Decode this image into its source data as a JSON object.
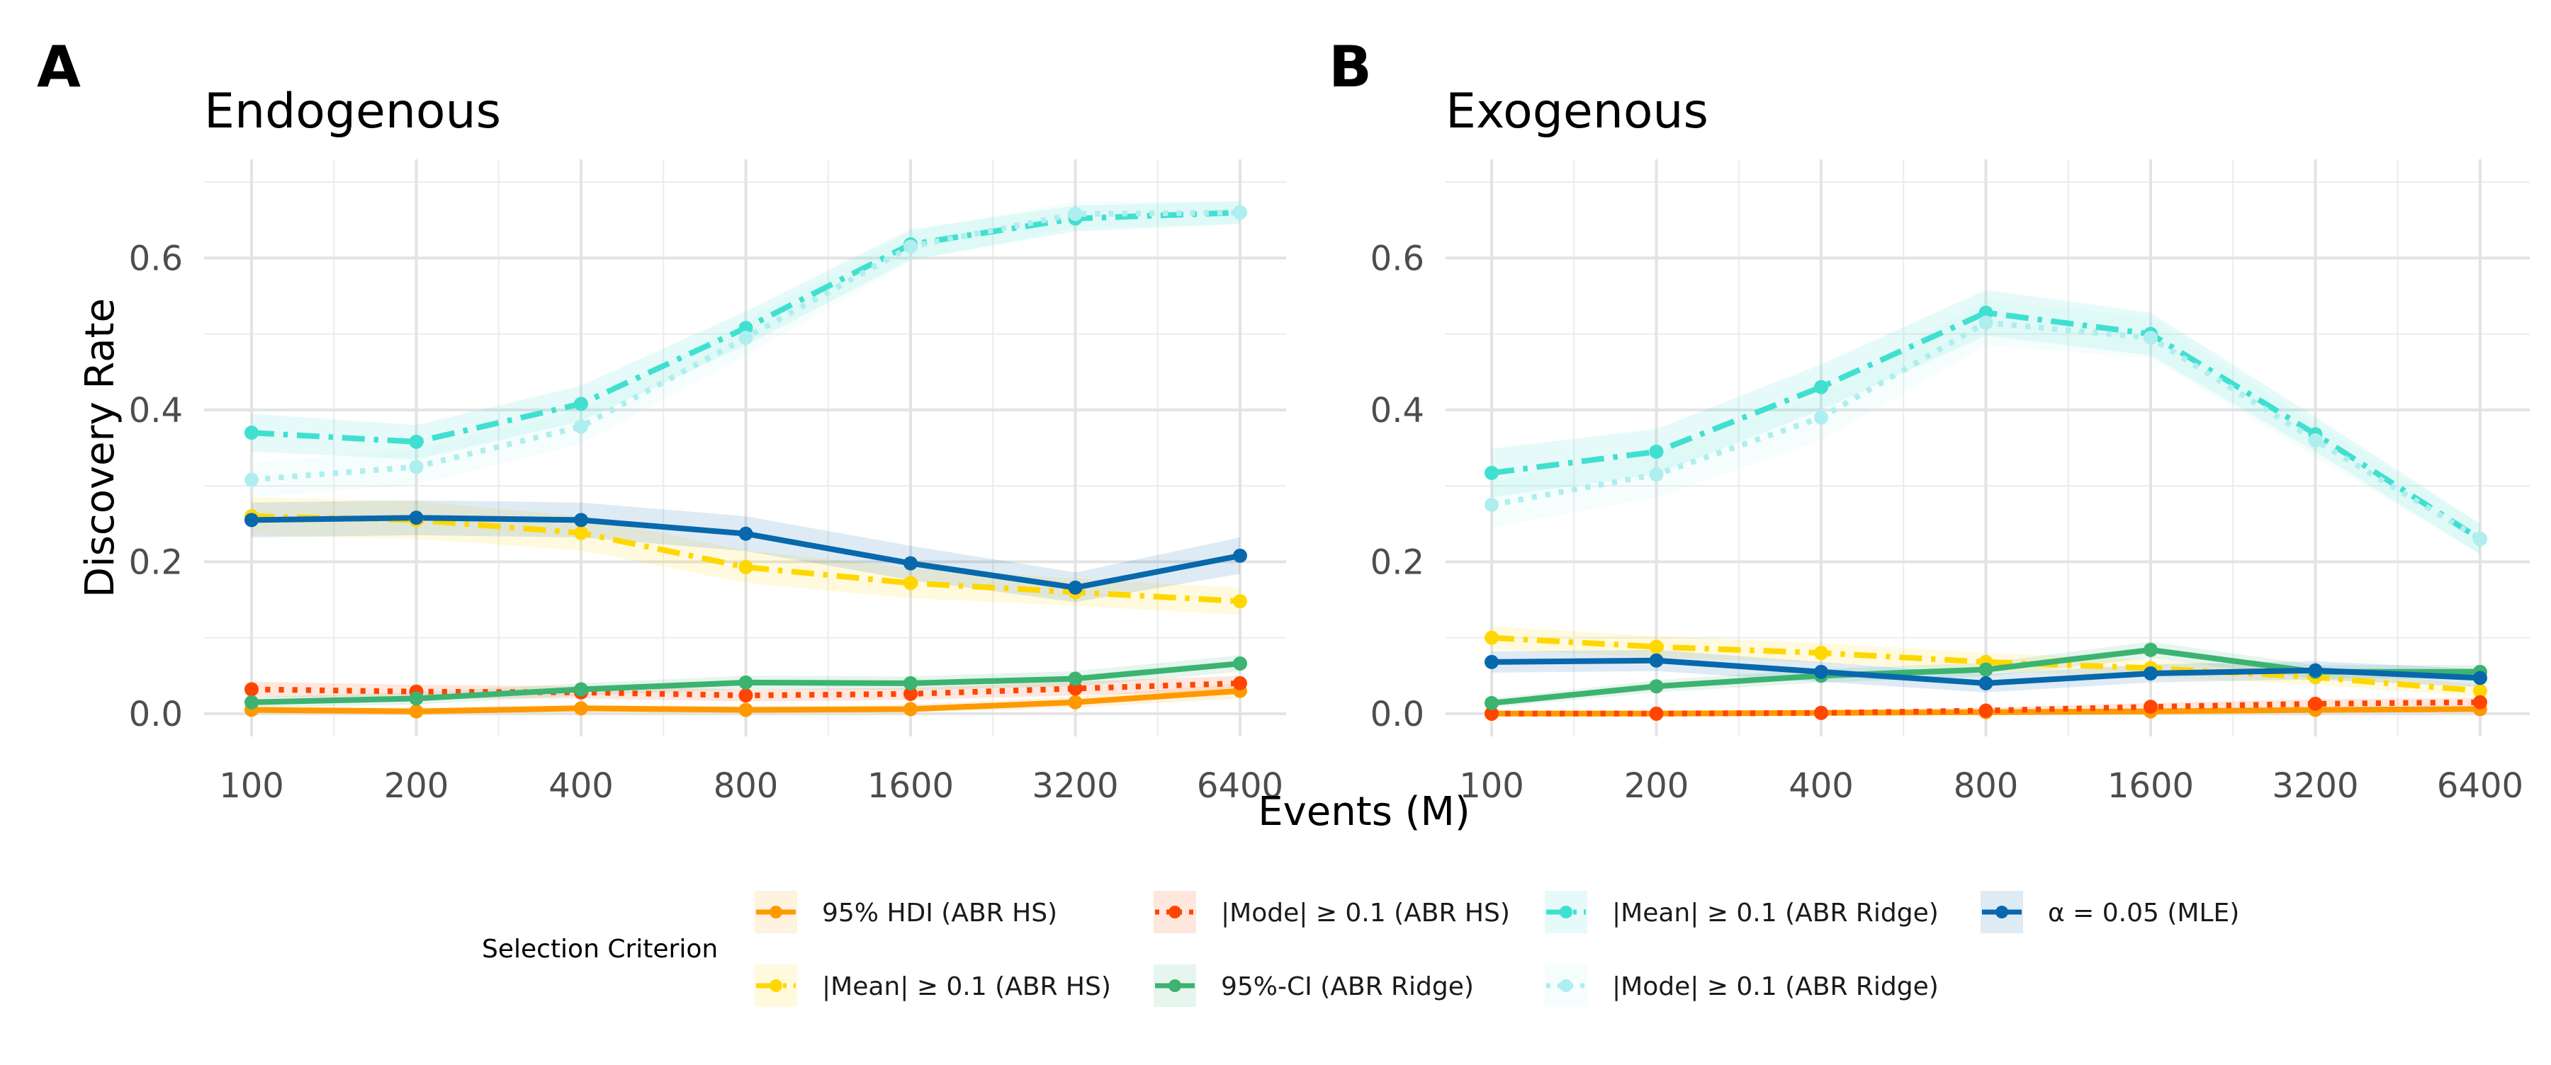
{
  "chart_data": [
    {
      "panel": "A",
      "type": "line",
      "title": "Endogenous",
      "xlabel": "Events (M)",
      "ylabel": "Discovery Rate",
      "x_scale": "log2",
      "categories": [
        "100",
        "200",
        "400",
        "800",
        "1600",
        "3200",
        "6400"
      ],
      "yticks": [
        "0.0",
        "0.2",
        "0.4",
        "0.6"
      ],
      "ylim": [
        -0.03,
        0.73
      ],
      "grid": true,
      "series": [
        {
          "name": "95% HDI (ABR HS)",
          "color": "#ff9900",
          "values": [
            0.005,
            0.003,
            0.007,
            0.005,
            0.006,
            0.015,
            0.03
          ],
          "lower": [
            0.0,
            0.0,
            0.002,
            0.001,
            0.002,
            0.008,
            0.02
          ],
          "upper": [
            0.01,
            0.008,
            0.012,
            0.01,
            0.012,
            0.022,
            0.04
          ]
        },
        {
          "name": "|Mean| ≥ 0.1 (ABR HS)",
          "color": "#ffd700",
          "values": [
            0.26,
            0.255,
            0.238,
            0.193,
            0.172,
            0.16,
            0.148
          ],
          "lower": [
            0.235,
            0.23,
            0.215,
            0.172,
            0.152,
            0.142,
            0.13
          ],
          "upper": [
            0.285,
            0.28,
            0.26,
            0.215,
            0.192,
            0.178,
            0.166
          ]
        },
        {
          "name": "|Mode| ≥ 0.1 (ABR HS)",
          "color": "#ff4500",
          "values": [
            0.032,
            0.029,
            0.028,
            0.024,
            0.026,
            0.033,
            0.04
          ],
          "lower": [
            0.022,
            0.02,
            0.02,
            0.016,
            0.018,
            0.024,
            0.03
          ],
          "upper": [
            0.042,
            0.038,
            0.036,
            0.032,
            0.034,
            0.042,
            0.05
          ]
        },
        {
          "name": "95%-CI (ABR Ridge)",
          "color": "#3cb371",
          "values": [
            0.015,
            0.02,
            0.032,
            0.041,
            0.04,
            0.046,
            0.066
          ],
          "lower": [
            0.008,
            0.012,
            0.024,
            0.032,
            0.031,
            0.036,
            0.055
          ],
          "upper": [
            0.022,
            0.028,
            0.04,
            0.05,
            0.049,
            0.056,
            0.077
          ]
        },
        {
          "name": "|Mean| ≥ 0.1 (ABR Ridge)",
          "color": "#40e0d0",
          "values": [
            0.37,
            0.358,
            0.408,
            0.508,
            0.618,
            0.652,
            0.66
          ],
          "lower": [
            0.345,
            0.335,
            0.385,
            0.485,
            0.598,
            0.635,
            0.645
          ],
          "upper": [
            0.395,
            0.38,
            0.432,
            0.53,
            0.638,
            0.669,
            0.675
          ]
        },
        {
          "name": "|Mode| ≥ 0.1 (ABR Ridge)",
          "color": "#aeeeee",
          "values": [
            0.308,
            0.325,
            0.378,
            0.495,
            0.615,
            0.658,
            0.66
          ],
          "lower": [
            0.285,
            0.302,
            0.355,
            0.472,
            0.595,
            0.64,
            0.645
          ],
          "upper": [
            0.33,
            0.348,
            0.4,
            0.518,
            0.635,
            0.675,
            0.675
          ]
        },
        {
          "name": "α = 0.05 (MLE)",
          "color": "#0868ac",
          "values": [
            0.255,
            0.258,
            0.255,
            0.237,
            0.198,
            0.166,
            0.208
          ],
          "lower": [
            0.232,
            0.235,
            0.232,
            0.214,
            0.176,
            0.147,
            0.184
          ],
          "upper": [
            0.278,
            0.281,
            0.278,
            0.26,
            0.221,
            0.186,
            0.232
          ]
        }
      ]
    },
    {
      "panel": "B",
      "type": "line",
      "title": "Exogenous",
      "xlabel": "Events (M)",
      "ylabel": "",
      "x_scale": "log2",
      "categories": [
        "100",
        "200",
        "400",
        "800",
        "1600",
        "3200",
        "6400"
      ],
      "yticks": [
        "0.0",
        "0.2",
        "0.4",
        "0.6"
      ],
      "ylim": [
        -0.03,
        0.73
      ],
      "grid": true,
      "series": [
        {
          "name": "95% HDI (ABR HS)",
          "color": "#ff9900",
          "values": [
            0.0,
            0.0,
            0.001,
            0.002,
            0.003,
            0.005,
            0.006
          ],
          "lower": [
            0.0,
            0.0,
            0.0,
            0.0,
            0.0,
            0.001,
            0.002
          ],
          "upper": [
            0.004,
            0.004,
            0.005,
            0.006,
            0.007,
            0.009,
            0.01
          ]
        },
        {
          "name": "|Mean| ≥ 0.1 (ABR HS)",
          "color": "#ffd700",
          "values": [
            0.1,
            0.088,
            0.08,
            0.068,
            0.06,
            0.048,
            0.03
          ],
          "lower": [
            0.085,
            0.074,
            0.067,
            0.056,
            0.049,
            0.038,
            0.022
          ],
          "upper": [
            0.115,
            0.102,
            0.093,
            0.08,
            0.071,
            0.058,
            0.038
          ]
        },
        {
          "name": "|Mode| ≥ 0.1 (ABR HS)",
          "color": "#ff4500",
          "values": [
            0.0,
            0.0,
            0.001,
            0.004,
            0.009,
            0.013,
            0.015
          ],
          "lower": [
            0.0,
            0.0,
            0.0,
            0.0,
            0.004,
            0.007,
            0.009
          ],
          "upper": [
            0.004,
            0.004,
            0.005,
            0.008,
            0.014,
            0.019,
            0.021
          ]
        },
        {
          "name": "95%-CI (ABR Ridge)",
          "color": "#3cb371",
          "values": [
            0.014,
            0.036,
            0.05,
            0.058,
            0.084,
            0.055,
            0.055
          ],
          "lower": [
            0.008,
            0.028,
            0.041,
            0.049,
            0.073,
            0.046,
            0.046
          ],
          "upper": [
            0.02,
            0.044,
            0.059,
            0.067,
            0.095,
            0.064,
            0.064
          ]
        },
        {
          "name": "|Mean| ≥ 0.1 (ABR Ridge)",
          "color": "#40e0d0",
          "values": [
            0.317,
            0.345,
            0.43,
            0.528,
            0.5,
            0.368,
            0.23
          ],
          "lower": [
            0.285,
            0.315,
            0.4,
            0.498,
            0.472,
            0.345,
            0.21
          ],
          "upper": [
            0.349,
            0.375,
            0.46,
            0.558,
            0.528,
            0.391,
            0.25
          ]
        },
        {
          "name": "|Mode| ≥ 0.1 (ABR Ridge)",
          "color": "#aeeeee",
          "values": [
            0.275,
            0.315,
            0.39,
            0.515,
            0.495,
            0.36,
            0.23
          ],
          "lower": [
            0.245,
            0.285,
            0.36,
            0.485,
            0.468,
            0.338,
            0.21
          ],
          "upper": [
            0.305,
            0.345,
            0.42,
            0.545,
            0.522,
            0.382,
            0.25
          ]
        },
        {
          "name": "α = 0.05 (MLE)",
          "color": "#0868ac",
          "values": [
            0.068,
            0.07,
            0.055,
            0.04,
            0.053,
            0.057,
            0.047
          ],
          "lower": [
            0.054,
            0.056,
            0.042,
            0.028,
            0.041,
            0.045,
            0.035
          ],
          "upper": [
            0.082,
            0.084,
            0.068,
            0.052,
            0.065,
            0.069,
            0.059
          ]
        }
      ]
    }
  ],
  "legend": {
    "title": "Selection Criterion",
    "placement": "bottom",
    "items": [
      {
        "label": "95% HDI (ABR HS)",
        "color": "#ff9900",
        "line": "solid"
      },
      {
        "label": "|Mean| ≥ 0.1 (ABR HS)",
        "color": "#ffd700",
        "line": "dashdot"
      },
      {
        "label": "|Mode| ≥ 0.1 (ABR HS)",
        "color": "#ff4500",
        "line": "dotted"
      },
      {
        "label": "95%-CI (ABR Ridge)",
        "color": "#3cb371",
        "line": "solid"
      },
      {
        "label": "|Mean| ≥ 0.1 (ABR Ridge)",
        "color": "#40e0d0",
        "line": "dashdot"
      },
      {
        "label": "|Mode| ≥ 0.1 (ABR Ridge)",
        "color": "#aeeeee",
        "line": "dotted"
      },
      {
        "label": "α = 0.05 (MLE)",
        "color": "#0868ac",
        "line": "solid"
      }
    ]
  }
}
